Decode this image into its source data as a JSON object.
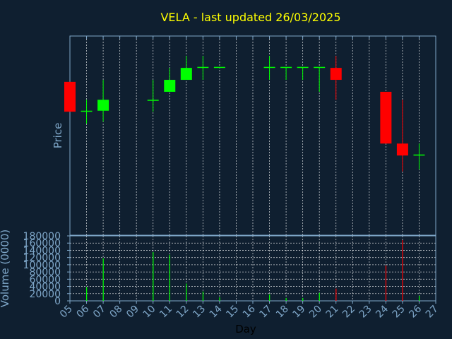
{
  "chart_data": [
    {
      "type": "candlestick",
      "title": "VELA - last updated 26/03/2025",
      "ylabel": "Price",
      "x": [
        "05",
        "06",
        "07",
        "08",
        "09",
        "10",
        "11",
        "12",
        "13",
        "14",
        "15",
        "16",
        "17",
        "18",
        "19",
        "20",
        "21",
        "22",
        "23",
        "24",
        "25",
        "26",
        "27"
      ],
      "xlim": [
        "05",
        "27"
      ],
      "ylim": [
        0.0,
        1.0
      ],
      "grid": true,
      "candles": [
        {
          "day": "05",
          "open": 0.77,
          "high": 0.77,
          "low": 0.62,
          "close": 0.62,
          "direction": "down"
        },
        {
          "day": "06",
          "open": 0.62,
          "high": 0.68,
          "low": 0.56,
          "close": 0.625,
          "direction": "up"
        },
        {
          "day": "07",
          "open": 0.625,
          "high": 0.78,
          "low": 0.57,
          "close": 0.68,
          "direction": "up"
        },
        {
          "day": "10",
          "open": 0.675,
          "high": 0.78,
          "low": 0.62,
          "close": 0.68,
          "direction": "up"
        },
        {
          "day": "11",
          "open": 0.72,
          "high": 0.84,
          "low": 0.72,
          "close": 0.78,
          "direction": "up"
        },
        {
          "day": "12",
          "open": 0.78,
          "high": 0.9,
          "low": 0.78,
          "close": 0.84,
          "direction": "up"
        },
        {
          "day": "13",
          "open": 0.84,
          "high": 0.9,
          "low": 0.78,
          "close": 0.845,
          "direction": "up"
        },
        {
          "day": "14",
          "open": 0.84,
          "high": 0.845,
          "low": 0.84,
          "close": 0.845,
          "direction": "up"
        },
        {
          "day": "17",
          "open": 0.84,
          "high": 0.9,
          "low": 0.78,
          "close": 0.845,
          "direction": "up"
        },
        {
          "day": "18",
          "open": 0.84,
          "high": 0.845,
          "low": 0.78,
          "close": 0.845,
          "direction": "up"
        },
        {
          "day": "19",
          "open": 0.84,
          "high": 0.845,
          "low": 0.78,
          "close": 0.845,
          "direction": "up"
        },
        {
          "day": "20",
          "open": 0.84,
          "high": 0.845,
          "low": 0.72,
          "close": 0.845,
          "direction": "up"
        },
        {
          "day": "21",
          "open": 0.84,
          "high": 0.9,
          "low": 0.68,
          "close": 0.78,
          "direction": "down"
        },
        {
          "day": "24",
          "open": 0.72,
          "high": 0.72,
          "low": 0.46,
          "close": 0.46,
          "direction": "down"
        },
        {
          "day": "25",
          "open": 0.46,
          "high": 0.68,
          "low": 0.32,
          "close": 0.4,
          "direction": "down"
        },
        {
          "day": "26",
          "open": 0.4,
          "high": 0.46,
          "low": 0.33,
          "close": 0.405,
          "direction": "up"
        }
      ],
      "colors": {
        "up": "#00ff00",
        "down": "#ff0000"
      }
    },
    {
      "type": "bar",
      "ylabel": "Volume (0000)",
      "xlabel": "Day",
      "x": [
        "05",
        "06",
        "07",
        "08",
        "09",
        "10",
        "11",
        "12",
        "13",
        "14",
        "15",
        "16",
        "17",
        "18",
        "19",
        "20",
        "21",
        "22",
        "23",
        "24",
        "25",
        "26",
        "27"
      ],
      "ylim": [
        0,
        180000
      ],
      "yticks": [
        "0",
        "20000",
        "40000",
        "60000",
        "80000",
        "100000",
        "120000",
        "140000",
        "160000",
        "180000"
      ],
      "grid": true,
      "volumes": [
        {
          "day": "06",
          "value": 38000,
          "direction": "up"
        },
        {
          "day": "07",
          "value": 118000,
          "direction": "up"
        },
        {
          "day": "10",
          "value": 135000,
          "direction": "up"
        },
        {
          "day": "11",
          "value": 128000,
          "direction": "up"
        },
        {
          "day": "12",
          "value": 48000,
          "direction": "up"
        },
        {
          "day": "13",
          "value": 26000,
          "direction": "up"
        },
        {
          "day": "14",
          "value": 10000,
          "direction": "up"
        },
        {
          "day": "17",
          "value": 18000,
          "direction": "up"
        },
        {
          "day": "18",
          "value": 8000,
          "direction": "up"
        },
        {
          "day": "19",
          "value": 8000,
          "direction": "up"
        },
        {
          "day": "20",
          "value": 22000,
          "direction": "up"
        },
        {
          "day": "21",
          "value": 34000,
          "direction": "down"
        },
        {
          "day": "24",
          "value": 98000,
          "direction": "down"
        },
        {
          "day": "25",
          "value": 168000,
          "direction": "down"
        },
        {
          "day": "26",
          "value": 14000,
          "direction": "up"
        }
      ],
      "colors": {
        "up": "#00ff00",
        "down": "#ff0000"
      }
    }
  ]
}
